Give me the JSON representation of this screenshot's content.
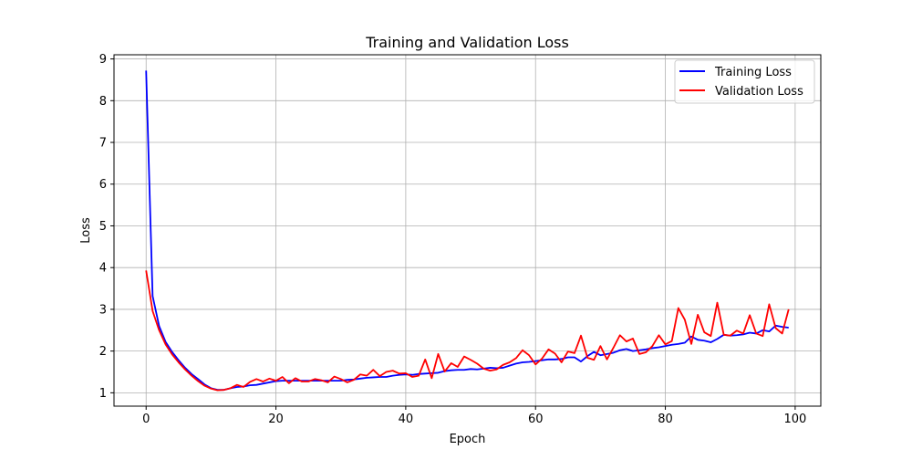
{
  "chart_data": {
    "type": "line",
    "title": "Training and Validation Loss",
    "xlabel": "Epoch",
    "ylabel": "Loss",
    "xlim": [
      -4.95,
      103.95
    ],
    "ylim": [
      0.68,
      9.1
    ],
    "xticks": [
      0,
      20,
      40,
      60,
      80,
      100
    ],
    "yticks": [
      1,
      2,
      3,
      4,
      5,
      6,
      7,
      8,
      9
    ],
    "grid": true,
    "legend_position": "top-right",
    "x": [
      0,
      1,
      2,
      3,
      4,
      5,
      6,
      7,
      8,
      9,
      10,
      11,
      12,
      13,
      14,
      15,
      16,
      17,
      18,
      19,
      20,
      21,
      22,
      23,
      24,
      25,
      26,
      27,
      28,
      29,
      30,
      31,
      32,
      33,
      34,
      35,
      36,
      37,
      38,
      39,
      40,
      41,
      42,
      43,
      44,
      45,
      46,
      47,
      48,
      49,
      50,
      51,
      52,
      53,
      54,
      55,
      56,
      57,
      58,
      59,
      60,
      61,
      62,
      63,
      64,
      65,
      66,
      67,
      68,
      69,
      70,
      71,
      72,
      73,
      74,
      75,
      76,
      77,
      78,
      79,
      80,
      81,
      82,
      83,
      84,
      85,
      86,
      87,
      88,
      89,
      90,
      91,
      92,
      93,
      94,
      95,
      96,
      97,
      98,
      99
    ],
    "series": [
      {
        "name": "Training Loss",
        "color": "#0000ff",
        "values": [
          8.72,
          3.32,
          2.6,
          2.22,
          1.98,
          1.78,
          1.6,
          1.45,
          1.33,
          1.2,
          1.11,
          1.07,
          1.07,
          1.11,
          1.14,
          1.15,
          1.18,
          1.19,
          1.22,
          1.25,
          1.28,
          1.29,
          1.29,
          1.29,
          1.29,
          1.29,
          1.29,
          1.29,
          1.29,
          1.29,
          1.29,
          1.31,
          1.32,
          1.34,
          1.36,
          1.37,
          1.38,
          1.38,
          1.41,
          1.43,
          1.44,
          1.43,
          1.45,
          1.46,
          1.47,
          1.48,
          1.52,
          1.54,
          1.55,
          1.55,
          1.57,
          1.56,
          1.58,
          1.6,
          1.59,
          1.6,
          1.65,
          1.7,
          1.73,
          1.74,
          1.76,
          1.78,
          1.8,
          1.8,
          1.81,
          1.85,
          1.85,
          1.75,
          1.88,
          1.98,
          1.9,
          1.93,
          1.96,
          2.02,
          2.05,
          2.0,
          2.02,
          2.04,
          2.07,
          2.09,
          2.12,
          2.15,
          2.17,
          2.2,
          2.35,
          2.27,
          2.25,
          2.21,
          2.29,
          2.39,
          2.37,
          2.38,
          2.4,
          2.44,
          2.42,
          2.5,
          2.47,
          2.61,
          2.58,
          2.56
        ]
      },
      {
        "name": "Validation Loss",
        "color": "#ff0000",
        "values": [
          3.93,
          2.96,
          2.5,
          2.16,
          1.92,
          1.73,
          1.56,
          1.41,
          1.28,
          1.17,
          1.1,
          1.06,
          1.07,
          1.11,
          1.19,
          1.14,
          1.26,
          1.33,
          1.27,
          1.34,
          1.29,
          1.38,
          1.23,
          1.35,
          1.27,
          1.27,
          1.33,
          1.3,
          1.25,
          1.39,
          1.33,
          1.25,
          1.31,
          1.44,
          1.41,
          1.55,
          1.4,
          1.5,
          1.53,
          1.46,
          1.47,
          1.38,
          1.41,
          1.8,
          1.35,
          1.93,
          1.51,
          1.71,
          1.62,
          1.87,
          1.79,
          1.7,
          1.58,
          1.53,
          1.56,
          1.67,
          1.73,
          1.83,
          2.02,
          1.9,
          1.68,
          1.82,
          2.04,
          1.94,
          1.73,
          1.99,
          1.95,
          2.37,
          1.84,
          1.79,
          2.12,
          1.8,
          2.08,
          2.38,
          2.23,
          2.3,
          1.93,
          1.97,
          2.12,
          2.38,
          2.16,
          2.24,
          3.03,
          2.75,
          2.17,
          2.87,
          2.45,
          2.36,
          3.16,
          2.39,
          2.37,
          2.49,
          2.42,
          2.86,
          2.42,
          2.36,
          3.12,
          2.55,
          2.42,
          3.0
        ]
      }
    ]
  }
}
